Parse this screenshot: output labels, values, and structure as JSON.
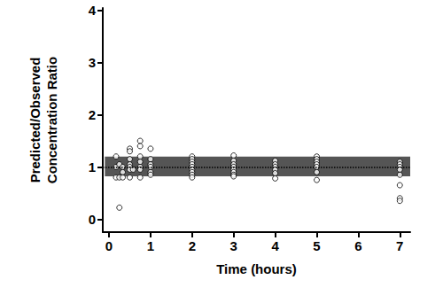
{
  "chart_data": {
    "type": "scatter",
    "x_label": "Time (hours)",
    "y_label": "Predicted/Observed\nConcentration Ratio",
    "x": [
      0.17,
      0.17,
      0.17,
      0.25,
      0.25,
      0.25,
      0.33,
      0.33,
      0.33,
      0.5,
      0.5,
      0.5,
      0.5,
      0.5,
      0.5,
      0.5,
      0.58,
      0.75,
      0.75,
      0.75,
      0.75,
      0.75,
      0.75,
      0.75,
      1,
      1,
      1,
      1,
      1,
      1,
      2,
      2,
      2,
      2,
      2,
      2,
      2,
      2,
      2,
      3,
      3,
      3,
      3,
      3,
      3,
      3,
      3,
      4,
      4,
      4,
      4,
      4,
      4,
      5,
      5,
      5,
      5,
      5,
      5,
      5,
      7,
      7,
      7,
      7,
      7,
      7,
      7,
      7
    ],
    "values": [
      1.2,
      1.0,
      0.8,
      1.05,
      0.8,
      0.22,
      1.0,
      0.9,
      0.8,
      1.35,
      1.3,
      1.15,
      1.05,
      1.0,
      0.95,
      0.8,
      0.95,
      1.5,
      1.4,
      1.2,
      1.1,
      1.0,
      0.95,
      0.8,
      1.35,
      1.15,
      1.05,
      1.0,
      0.9,
      0.85,
      1.2,
      1.15,
      1.1,
      1.05,
      1.0,
      0.95,
      0.9,
      0.85,
      0.8,
      1.22,
      1.12,
      1.05,
      1.0,
      0.95,
      0.9,
      0.85,
      0.82,
      1.12,
      1.05,
      1.0,
      0.95,
      0.88,
      0.78,
      1.2,
      1.15,
      1.1,
      1.05,
      1.0,
      0.9,
      0.75,
      1.1,
      1.05,
      1.0,
      0.95,
      0.85,
      0.65,
      0.4,
      0.35
    ],
    "xlim": [
      -0.15,
      7.25
    ],
    "xticks": [
      0,
      1,
      2,
      3,
      4,
      5,
      6,
      7
    ],
    "ylim": [
      -0.25,
      4.05
    ],
    "yticks": [
      0,
      1,
      2,
      3,
      4
    ],
    "marker": "hollow circle",
    "color": "#000000",
    "reference_band": {
      "x": [
        -0.1,
        7.25
      ],
      "y": [
        0.82,
        1.2
      ],
      "color": "#555555"
    },
    "reference_line": {
      "y": 1,
      "line_style": "dotted"
    },
    "grid": false
  }
}
